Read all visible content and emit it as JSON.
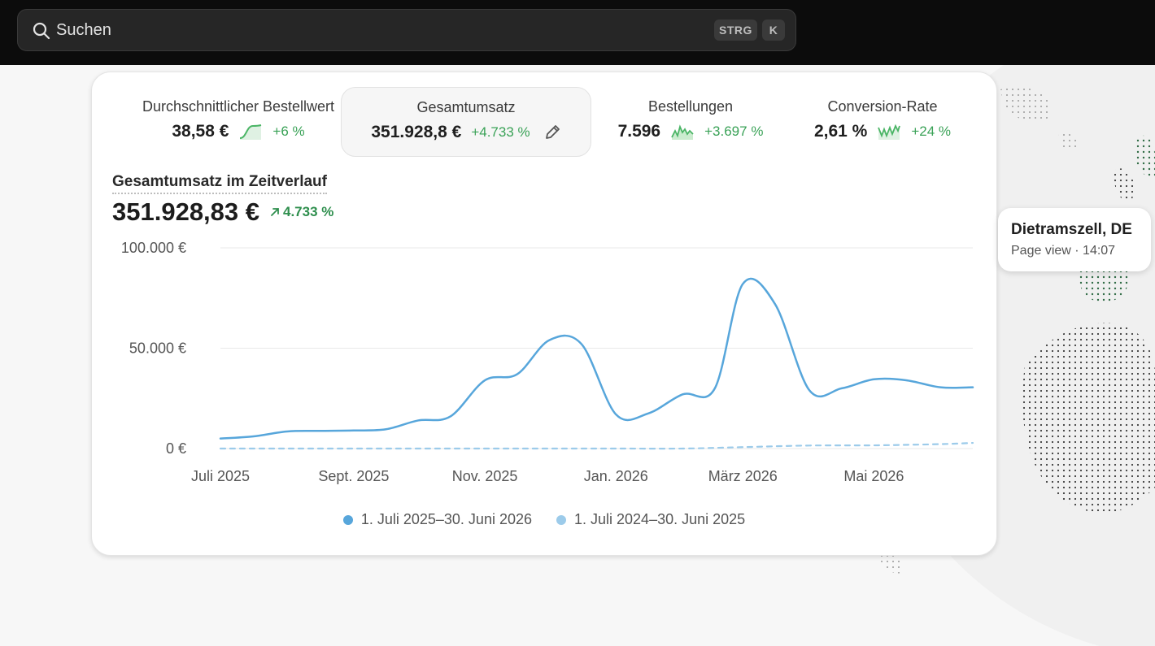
{
  "search": {
    "label": "Suchen",
    "shortcut_keys": [
      "STRG",
      "K"
    ]
  },
  "metrics": [
    {
      "title": "Durchschnittlicher Bestellwert",
      "value": "38,58 €",
      "delta": "+6 %",
      "sparkline_icon": "sparkline-up-icon"
    },
    {
      "title": "Gesamtumsatz",
      "value": "351.928,8 €",
      "delta": "+4.733 %",
      "active": true,
      "edit_icon": "pencil-icon"
    },
    {
      "title": "Bestellungen",
      "value": "7.596",
      "delta": "+3.697 %",
      "sparkline_icon": "sparkline-area-icon"
    },
    {
      "title": "Conversion-Rate",
      "value": "2,61 %",
      "delta": "+24 %",
      "sparkline_icon": "sparkline-zigzag-icon"
    }
  ],
  "chart_header": {
    "title": "Gesamtumsatz im Zeitverlauf",
    "total": "351.928,83 €",
    "delta": "4.733 %"
  },
  "colors": {
    "primary_series": "#57a6db",
    "comparison_series": "#9ccbea",
    "positive": "#3aa257"
  },
  "chart_data": {
    "type": "line",
    "title": "Gesamtumsatz im Zeitverlauf",
    "xlabel": "",
    "ylabel": "",
    "ylim": [
      0,
      100000
    ],
    "y_ticks": [
      "0 €",
      "50.000 €",
      "100.000 €"
    ],
    "x_tick_labels": [
      "Juli 2025",
      "Sept. 2025",
      "Nov. 2025",
      "Jan. 2026",
      "März 2026",
      "Mai 2026"
    ],
    "grid": true,
    "legend_position": "bottom-center",
    "series": [
      {
        "name": "1. Juli 2025–30. Juni 2026",
        "style": "solid",
        "points": [
          [
            "2025-07-01",
            5000
          ],
          [
            "2025-07-16",
            6000
          ],
          [
            "2025-08-01",
            8500
          ],
          [
            "2025-08-16",
            8800
          ],
          [
            "2025-09-01",
            9000
          ],
          [
            "2025-09-16",
            9600
          ],
          [
            "2025-10-01",
            14000
          ],
          [
            "2025-10-16",
            16000
          ],
          [
            "2025-11-01",
            34000
          ],
          [
            "2025-11-16",
            37000
          ],
          [
            "2025-12-01",
            54000
          ],
          [
            "2025-12-16",
            52000
          ],
          [
            "2026-01-01",
            17000
          ],
          [
            "2026-01-16",
            17500
          ],
          [
            "2026-02-01",
            27000
          ],
          [
            "2026-02-16",
            30000
          ],
          [
            "2026-03-01",
            82000
          ],
          [
            "2026-03-16",
            72000
          ],
          [
            "2026-04-01",
            29000
          ],
          [
            "2026-04-16",
            30000
          ],
          [
            "2026-05-01",
            34500
          ],
          [
            "2026-05-16",
            34000
          ],
          [
            "2026-06-01",
            30500
          ],
          [
            "2026-06-16",
            30500
          ]
        ]
      },
      {
        "name": "1. Juli 2024–30. Juni 2025",
        "style": "dashed",
        "points": [
          [
            "2025-07-01",
            0
          ],
          [
            "2025-08-01",
            0
          ],
          [
            "2025-09-01",
            0
          ],
          [
            "2025-10-01",
            0
          ],
          [
            "2025-11-01",
            0
          ],
          [
            "2025-12-01",
            0
          ],
          [
            "2026-01-01",
            0
          ],
          [
            "2026-02-01",
            0
          ],
          [
            "2026-03-01",
            700
          ],
          [
            "2026-04-01",
            1500
          ],
          [
            "2026-05-01",
            1600
          ],
          [
            "2026-06-01",
            2200
          ],
          [
            "2026-06-16",
            2800
          ]
        ]
      }
    ]
  },
  "visitor_popup": {
    "location": "Dietramszell, DE",
    "detail": "Page view · 14:07"
  }
}
